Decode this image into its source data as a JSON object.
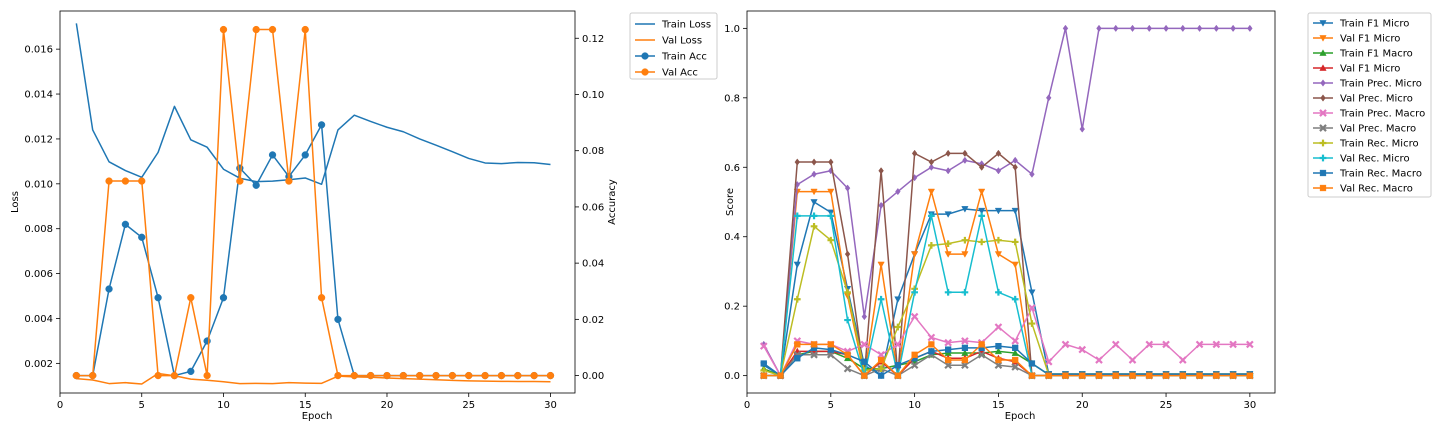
{
  "chart_data": [
    {
      "type": "line",
      "title": "",
      "xlabel": "Epoch",
      "ylabel": "Loss",
      "y2label": "Accuracy",
      "xlim": [
        0,
        31.5
      ],
      "ylim": [
        0.00068,
        0.0177
      ],
      "y2lim": [
        -0.0062,
        0.1297
      ],
      "xticks": [
        0,
        5,
        10,
        15,
        20,
        25,
        30
      ],
      "yticks": [
        0.002,
        0.004,
        0.006,
        0.008,
        0.01,
        0.012,
        0.014,
        0.016
      ],
      "y2ticks": [
        0.0,
        0.02,
        0.04,
        0.06,
        0.08,
        0.1,
        0.12
      ],
      "y_tick_labels": [
        "0.002",
        "0.004",
        "0.006",
        "0.008",
        "0.010",
        "0.012",
        "0.014",
        "0.016"
      ],
      "y2_tick_labels": [
        "0.00",
        "0.02",
        "0.04",
        "0.06",
        "0.08",
        "0.10",
        "0.12"
      ],
      "grid": false,
      "legend_position": "outside-top-right",
      "x": [
        1,
        2,
        3,
        4,
        5,
        6,
        7,
        8,
        9,
        10,
        11,
        12,
        13,
        14,
        15,
        16,
        17,
        18,
        19,
        20,
        21,
        22,
        23,
        24,
        25,
        26,
        27,
        28,
        29,
        30
      ],
      "series": [
        {
          "name": "Train Loss",
          "axis": "left",
          "color": "#1f77b4",
          "marker": "none",
          "values": [
            0.01715,
            0.0124,
            0.01098,
            0.01059,
            0.01029,
            0.0114,
            0.01345,
            0.01196,
            0.01163,
            0.01065,
            0.01025,
            0.0101,
            0.01012,
            0.01018,
            0.01026,
            0.00998,
            0.0124,
            0.01306,
            0.01278,
            0.01252,
            0.01232,
            0.012,
            0.01172,
            0.01143,
            0.01113,
            0.01093,
            0.0109,
            0.01095,
            0.01094,
            0.01086
          ]
        },
        {
          "name": "Val Loss",
          "axis": "left",
          "color": "#ff7f0e",
          "marker": "none",
          "values": [
            0.00132,
            0.00126,
            0.0011,
            0.00114,
            0.00108,
            0.00155,
            0.00145,
            0.0013,
            0.00125,
            0.00118,
            0.0011,
            0.00111,
            0.0011,
            0.00114,
            0.00112,
            0.00111,
            0.00143,
            0.0014,
            0.00138,
            0.00135,
            0.00132,
            0.0013,
            0.00127,
            0.00124,
            0.00122,
            0.00121,
            0.0012,
            0.00119,
            0.00119,
            0.00118
          ]
        },
        {
          "name": "Train Acc",
          "axis": "right",
          "color": "#1f77b4",
          "marker": "circle",
          "values": [
            0.0,
            0.0,
            0.0308,
            0.0538,
            0.0492,
            0.0277,
            0.0,
            0.0015,
            0.0123,
            0.0277,
            0.0738,
            0.0677,
            0.0785,
            0.0708,
            0.0785,
            0.0892,
            0.02,
            0.0,
            0.0,
            0.0,
            0.0,
            0.0,
            0.0,
            0.0,
            0.0,
            0.0,
            0.0,
            0.0,
            0.0,
            0.0
          ]
        },
        {
          "name": "Val Acc",
          "axis": "right",
          "color": "#ff7f0e",
          "marker": "circle",
          "values": [
            0.0,
            0.0,
            0.0692,
            0.0692,
            0.0692,
            0.0,
            0.0,
            0.0277,
            0.0,
            0.1231,
            0.0692,
            0.1231,
            0.1231,
            0.0692,
            0.1231,
            0.0277,
            0.0,
            0.0,
            0.0,
            0.0,
            0.0,
            0.0,
            0.0,
            0.0,
            0.0,
            0.0,
            0.0,
            0.0,
            0.0,
            0.0
          ]
        }
      ]
    },
    {
      "type": "line",
      "title": "",
      "xlabel": "Epoch",
      "ylabel": "Score",
      "xlim": [
        0,
        31.5
      ],
      "ylim": [
        -0.05,
        1.05
      ],
      "xticks": [
        0,
        5,
        10,
        15,
        20,
        25,
        30
      ],
      "yticks": [
        0.0,
        0.2,
        0.4,
        0.6,
        0.8,
        1.0
      ],
      "y_tick_labels": [
        "0.0",
        "0.2",
        "0.4",
        "0.6",
        "0.8",
        "1.0"
      ],
      "grid": false,
      "legend_position": "outside-top-right",
      "x": [
        1,
        2,
        3,
        4,
        5,
        6,
        7,
        8,
        9,
        10,
        11,
        12,
        13,
        14,
        15,
        16,
        17,
        18,
        19,
        20,
        21,
        22,
        23,
        24,
        25,
        26,
        27,
        28,
        29,
        30
      ],
      "series": [
        {
          "name": "Train F1 Micro",
          "color": "#1f77b4",
          "marker": "triangle-down",
          "values": [
            0.03,
            0.0,
            0.32,
            0.5,
            0.47,
            0.25,
            0.03,
            0.0,
            0.22,
            0.35,
            0.465,
            0.465,
            0.48,
            0.475,
            0.475,
            0.475,
            0.24,
            0.005,
            0.005,
            0.005,
            0.005,
            0.005,
            0.005,
            0.005,
            0.005,
            0.005,
            0.005,
            0.005,
            0.005,
            0.005
          ]
        },
        {
          "name": "Val F1 Micro",
          "color": "#ff7f0e",
          "marker": "triangle-down",
          "values": [
            0.0,
            0.0,
            0.53,
            0.53,
            0.53,
            0.23,
            0.0,
            0.32,
            0.0,
            0.35,
            0.53,
            0.35,
            0.35,
            0.53,
            0.35,
            0.32,
            0.0,
            0.0,
            0.0,
            0.0,
            0.0,
            0.0,
            0.0,
            0.0,
            0.0,
            0.0,
            0.0,
            0.0,
            0.0,
            0.0
          ]
        },
        {
          "name": "Train F1 Macro",
          "color": "#2ca02c",
          "marker": "triangle-up",
          "values": [
            0.02,
            0.0,
            0.06,
            0.07,
            0.07,
            0.05,
            0.02,
            0.02,
            0.03,
            0.04,
            0.06,
            0.065,
            0.065,
            0.065,
            0.07,
            0.065,
            0.035,
            0.003,
            0.003,
            0.003,
            0.003,
            0.003,
            0.003,
            0.003,
            0.003,
            0.003,
            0.003,
            0.003,
            0.003,
            0.003
          ]
        },
        {
          "name": "Val F1 Micro",
          "color": "#d62728",
          "marker": "triangle-up",
          "values": [
            0.0,
            0.0,
            0.07,
            0.07,
            0.07,
            0.06,
            0.0,
            0.04,
            0.0,
            0.05,
            0.07,
            0.05,
            0.05,
            0.07,
            0.05,
            0.04,
            0.0,
            0.0,
            0.0,
            0.0,
            0.0,
            0.0,
            0.0,
            0.0,
            0.0,
            0.0,
            0.0,
            0.0,
            0.0,
            0.0
          ]
        },
        {
          "name": "Train Prec. Micro",
          "color": "#9467bd",
          "marker": "diamond",
          "values": [
            0.09,
            0.0,
            0.55,
            0.58,
            0.59,
            0.54,
            0.17,
            0.49,
            0.53,
            0.57,
            0.6,
            0.59,
            0.62,
            0.61,
            0.59,
            0.62,
            0.58,
            0.8,
            1.0,
            0.71,
            1.0,
            1.0,
            1.0,
            1.0,
            1.0,
            1.0,
            1.0,
            1.0,
            1.0,
            1.0
          ]
        },
        {
          "name": "Val Prec. Micro",
          "color": "#8c564b",
          "marker": "diamond",
          "values": [
            0.0,
            0.0,
            0.615,
            0.615,
            0.615,
            0.35,
            0.0,
            0.59,
            0.0,
            0.64,
            0.615,
            0.64,
            0.64,
            0.6,
            0.64,
            0.6,
            0.0,
            0.0,
            0.0,
            0.0,
            0.0,
            0.0,
            0.0,
            0.0,
            0.0,
            0.0,
            0.0,
            0.0,
            0.0,
            0.0
          ]
        },
        {
          "name": "Train Prec. Macro",
          "color": "#e377c2",
          "marker": "x-filled",
          "values": [
            0.085,
            0.0,
            0.1,
            0.09,
            0.09,
            0.07,
            0.09,
            0.06,
            0.09,
            0.17,
            0.11,
            0.095,
            0.1,
            0.095,
            0.14,
            0.1,
            0.195,
            0.04,
            0.09,
            0.075,
            0.045,
            0.09,
            0.045,
            0.09,
            0.09,
            0.045,
            0.09,
            0.09,
            0.09,
            0.09
          ]
        },
        {
          "name": "Val Prec. Macro",
          "color": "#7f7f7f",
          "marker": "x-filled",
          "values": [
            0.0,
            0.0,
            0.06,
            0.06,
            0.06,
            0.02,
            0.0,
            0.02,
            0.0,
            0.03,
            0.06,
            0.03,
            0.03,
            0.06,
            0.03,
            0.025,
            0.0,
            0.0,
            0.0,
            0.0,
            0.0,
            0.0,
            0.0,
            0.0,
            0.0,
            0.0,
            0.0,
            0.0,
            0.0,
            0.0
          ]
        },
        {
          "name": "Train Rec. Micro",
          "color": "#bcbd22",
          "marker": "plus-filled",
          "values": [
            0.015,
            0.0,
            0.22,
            0.43,
            0.39,
            0.24,
            0.015,
            0.02,
            0.14,
            0.25,
            0.375,
            0.38,
            0.39,
            0.385,
            0.39,
            0.385,
            0.15,
            0.003,
            0.003,
            0.003,
            0.003,
            0.003,
            0.003,
            0.003,
            0.003,
            0.003,
            0.003,
            0.003,
            0.003,
            0.003
          ]
        },
        {
          "name": "Val Rec. Micro",
          "color": "#17becf",
          "marker": "plus-filled",
          "values": [
            0.0,
            0.0,
            0.46,
            0.46,
            0.46,
            0.16,
            0.0,
            0.22,
            0.0,
            0.24,
            0.46,
            0.24,
            0.24,
            0.46,
            0.24,
            0.22,
            0.0,
            0.0,
            0.0,
            0.0,
            0.0,
            0.0,
            0.0,
            0.0,
            0.0,
            0.0,
            0.0,
            0.0,
            0.0,
            0.0
          ]
        },
        {
          "name": "Train Rec. Macro",
          "color": "#1f77b4",
          "marker": "square",
          "values": [
            0.035,
            0.0,
            0.05,
            0.08,
            0.075,
            0.06,
            0.04,
            0.0,
            0.03,
            0.05,
            0.07,
            0.075,
            0.08,
            0.08,
            0.085,
            0.08,
            0.035,
            0.003,
            0.003,
            0.003,
            0.003,
            0.003,
            0.003,
            0.003,
            0.003,
            0.003,
            0.003,
            0.003,
            0.003,
            0.003
          ]
        },
        {
          "name": "Val Rec. Macro",
          "color": "#ff7f0e",
          "marker": "square",
          "values": [
            0.0,
            0.0,
            0.09,
            0.09,
            0.09,
            0.06,
            0.0,
            0.045,
            0.0,
            0.06,
            0.09,
            0.045,
            0.045,
            0.09,
            0.045,
            0.045,
            0.0,
            0.0,
            0.0,
            0.0,
            0.0,
            0.0,
            0.0,
            0.0,
            0.0,
            0.0,
            0.0,
            0.0,
            0.0,
            0.0
          ]
        }
      ]
    }
  ]
}
